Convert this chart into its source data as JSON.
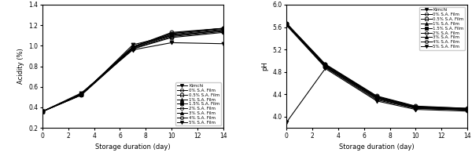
{
  "days": [
    0,
    3,
    7,
    10,
    14
  ],
  "acidity": {
    "Kimchi": [
      0.36,
      0.52,
      1.01,
      1.1,
      1.15
    ],
    "0% S.A. Film": [
      0.36,
      0.52,
      0.97,
      1.08,
      1.13
    ],
    "0.5% S.A. Film": [
      0.36,
      0.52,
      0.97,
      1.09,
      1.14
    ],
    "1% S.A. Film": [
      0.36,
      0.53,
      0.98,
      1.1,
      1.15
    ],
    "1.5% S.A. Film": [
      0.36,
      0.53,
      0.98,
      1.11,
      1.16
    ],
    "2% S.A. Film": [
      0.36,
      0.53,
      0.99,
      1.12,
      1.17
    ],
    "3% S.A. Film": [
      0.36,
      0.53,
      0.99,
      1.12,
      1.17
    ],
    "4% S.A. Film": [
      0.36,
      0.53,
      0.99,
      1.13,
      1.17
    ],
    "5% S.A. Film": [
      0.36,
      0.54,
      0.96,
      1.03,
      1.02
    ]
  },
  "ph": {
    "Kimchi": [
      5.63,
      4.88,
      4.3,
      4.15,
      4.12
    ],
    "0% S.A. Film": [
      5.65,
      4.89,
      4.32,
      4.15,
      4.12
    ],
    "0.5% S.A. Film": [
      5.65,
      4.9,
      4.33,
      4.16,
      4.13
    ],
    "1% S.A. Film": [
      5.65,
      4.91,
      4.34,
      4.17,
      4.13
    ],
    "1.5% S.A. Film": [
      5.66,
      4.92,
      4.35,
      4.17,
      4.14
    ],
    "2% S.A. Film": [
      5.66,
      4.93,
      4.36,
      4.18,
      4.14
    ],
    "3% S.A. Film": [
      5.66,
      4.93,
      4.36,
      4.18,
      4.15
    ],
    "4% S.A. Film": [
      5.67,
      4.94,
      4.37,
      4.19,
      4.15
    ],
    "5% S.A. Film": [
      3.9,
      4.86,
      4.28,
      4.13,
      4.1
    ]
  },
  "markers": [
    "v",
    "o",
    "s",
    "^",
    "s",
    "o",
    "^",
    "o",
    "v"
  ],
  "fillstyles": [
    "full",
    "none",
    "none",
    "full",
    "full",
    "none",
    "full",
    "none",
    "full"
  ],
  "colors": [
    "black",
    "black",
    "black",
    "black",
    "black",
    "black",
    "black",
    "black",
    "black"
  ],
  "legend_labels": [
    "Kimchi",
    "0% S.A. Film",
    "0.5% S.A. Film",
    "1% S.A. Film",
    "1.5% S.A. Film",
    "2% S.A. Film",
    "3% S.A. Film",
    "4% S.A. Film",
    "5% S.A. Film"
  ],
  "acidity_ylim": [
    0.2,
    1.4
  ],
  "acidity_yticks": [
    0.2,
    0.4,
    0.6,
    0.8,
    1.0,
    1.2,
    1.4
  ],
  "ph_ylim": [
    3.8,
    6.0
  ],
  "ph_yticks": [
    4.0,
    4.4,
    4.8,
    5.2,
    5.6,
    6.0
  ],
  "xticks": [
    0,
    2,
    4,
    6,
    8,
    10,
    12,
    14
  ],
  "xlabel": "Storage duration (day)",
  "ylabel_left": "Acidity (%)",
  "ylabel_right": "pH"
}
